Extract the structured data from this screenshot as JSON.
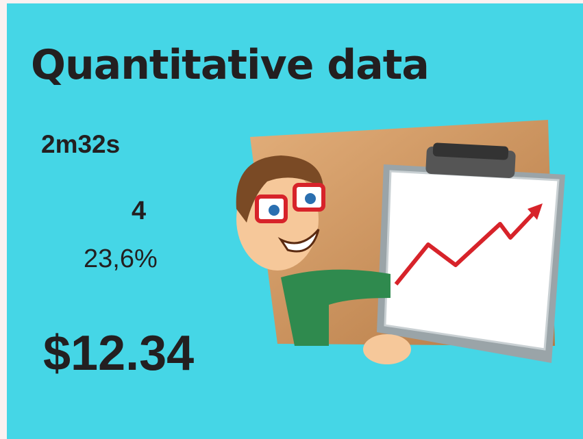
{
  "slide": {
    "title": "Quantitative data",
    "items": [
      "2m32s",
      "4",
      "23,6%",
      "$12.34"
    ]
  }
}
